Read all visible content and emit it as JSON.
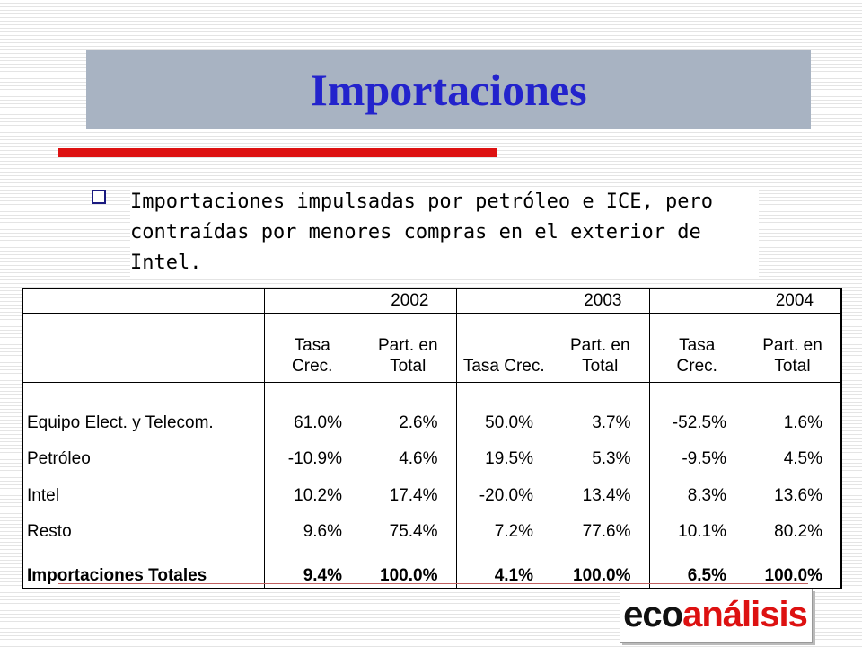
{
  "header": {
    "title": "Importaciones"
  },
  "bullet": "Importaciones impulsadas por petróleo e ICE, pero contraídas por menores compras en el exterior de Intel.",
  "table": {
    "years": [
      "2002",
      "2003",
      "2004"
    ],
    "subheaders": [
      "Tasa\nCrec.",
      "Part. en\nTotal",
      "Tasa Crec.",
      "Part. en\nTotal",
      "Tasa\nCrec.",
      "Part. en\nTotal"
    ],
    "rows": [
      [
        "Equipo Elect. y Telecom.",
        "61.0%",
        "2.6%",
        "50.0%",
        "3.7%",
        "-52.5%",
        "1.6%"
      ],
      [
        "Petróleo",
        "-10.9%",
        "4.6%",
        "19.5%",
        "5.3%",
        "-9.5%",
        "4.5%"
      ],
      [
        "Intel",
        "10.2%",
        "17.4%",
        "-20.0%",
        "13.4%",
        "8.3%",
        "13.6%"
      ],
      [
        "Resto",
        "9.6%",
        "75.4%",
        "7.2%",
        "77.6%",
        "10.1%",
        "80.2%"
      ],
      [
        "Importaciones Totales",
        "9.4%",
        "100.0%",
        "4.1%",
        "100.0%",
        "6.5%",
        "100.0%"
      ]
    ]
  },
  "logo": {
    "part1": "eco",
    "part2": "análisis"
  }
}
